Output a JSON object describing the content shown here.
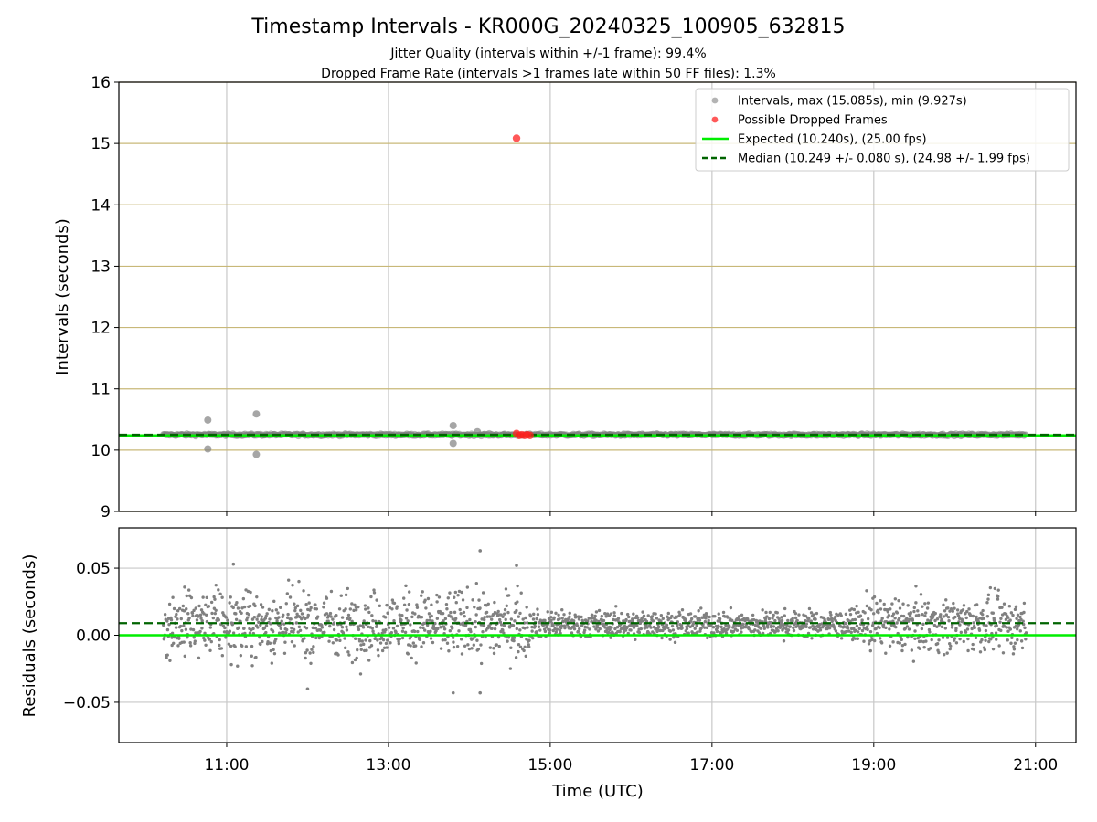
{
  "title": "Timestamp Intervals - KR000G_20240325_100905_632815",
  "subtitle1": "Jitter Quality (intervals within +/-1 frame): 99.4%",
  "subtitle2": "Dropped Frame Rate (intervals >1 frames late within 50 FF files): 1.3%",
  "xlabel": "Time (UTC)",
  "colors": {
    "intervals": "#808080",
    "dropped": "#ff2020",
    "expected": "#00ee00",
    "median": "#006400",
    "band_grid": "#c8b878",
    "grid": "#c8c8c8"
  },
  "chart_data": [
    {
      "type": "scatter",
      "panel": "top",
      "ylabel": "Intervals (seconds)",
      "xlim": [
        "09:40",
        "21:30"
      ],
      "ylim": [
        9,
        16
      ],
      "yticks": [
        "9",
        "10",
        "11",
        "12",
        "13",
        "14",
        "15",
        "16"
      ],
      "x_ticks": [
        "11:00",
        "13:00",
        "15:00",
        "17:00",
        "19:00",
        "21:00"
      ],
      "grid": true,
      "legend_position": "top-right",
      "series": [
        {
          "name": "Intervals, max (15.085s), min (9.927s)",
          "x_range": [
            "10:13",
            "20:53"
          ],
          "typical_value": 10.25,
          "outliers": [
            {
              "x": "10:46",
              "y": 10.49
            },
            {
              "x": "10:46",
              "y": 10.02
            },
            {
              "x": "11:22",
              "y": 10.59
            },
            {
              "x": "11:22",
              "y": 9.93
            },
            {
              "x": "13:48",
              "y": 10.4
            },
            {
              "x": "13:48",
              "y": 10.11
            },
            {
              "x": "14:06",
              "y": 10.3
            }
          ]
        },
        {
          "name": "Possible Dropped Frames",
          "points": [
            {
              "x": "14:35",
              "y": 15.085
            },
            {
              "x": "14:35",
              "y": 10.27
            },
            {
              "x": "14:37",
              "y": 10.24
            },
            {
              "x": "14:39",
              "y": 10.25
            },
            {
              "x": "14:41",
              "y": 10.24
            },
            {
              "x": "14:43",
              "y": 10.25
            },
            {
              "x": "14:45",
              "y": 10.24
            }
          ]
        },
        {
          "name": "Expected (10.240s), (25.00 fps)",
          "y": 10.24
        },
        {
          "name": "Median (10.249 +/- 0.080 s), (24.98 +/- 1.99 fps)",
          "y": 10.249
        }
      ]
    },
    {
      "type": "scatter",
      "panel": "bottom",
      "ylabel": "Residuals (seconds)",
      "xlabel": "Time (UTC)",
      "xlim": [
        "09:40",
        "21:30"
      ],
      "ylim": [
        -0.08,
        0.08
      ],
      "yticks": [
        "−0.05",
        "0.00",
        "0.05"
      ],
      "ytick_values": [
        -0.05,
        0.0,
        0.05
      ],
      "x_ticks": [
        "11:00",
        "13:00",
        "15:00",
        "17:00",
        "19:00",
        "21:00"
      ],
      "grid": true,
      "expected_line": 0.0,
      "median_line": 0.009,
      "x_range": [
        "10:13",
        "20:53"
      ],
      "residual_spread": [
        {
          "from": "10:13",
          "to": "14:45",
          "center": 0.008,
          "spread": 0.022
        },
        {
          "from": "14:45",
          "to": "18:50",
          "center": 0.008,
          "spread": 0.009
        },
        {
          "from": "18:50",
          "to": "20:53",
          "center": 0.008,
          "spread": 0.018
        }
      ],
      "notable_points": [
        {
          "x": "11:05",
          "y": 0.053
        },
        {
          "x": "14:08",
          "y": 0.063
        },
        {
          "x": "14:35",
          "y": 0.052
        },
        {
          "x": "12:00",
          "y": -0.04
        },
        {
          "x": "13:48",
          "y": -0.043
        },
        {
          "x": "14:08",
          "y": -0.043
        }
      ]
    }
  ]
}
